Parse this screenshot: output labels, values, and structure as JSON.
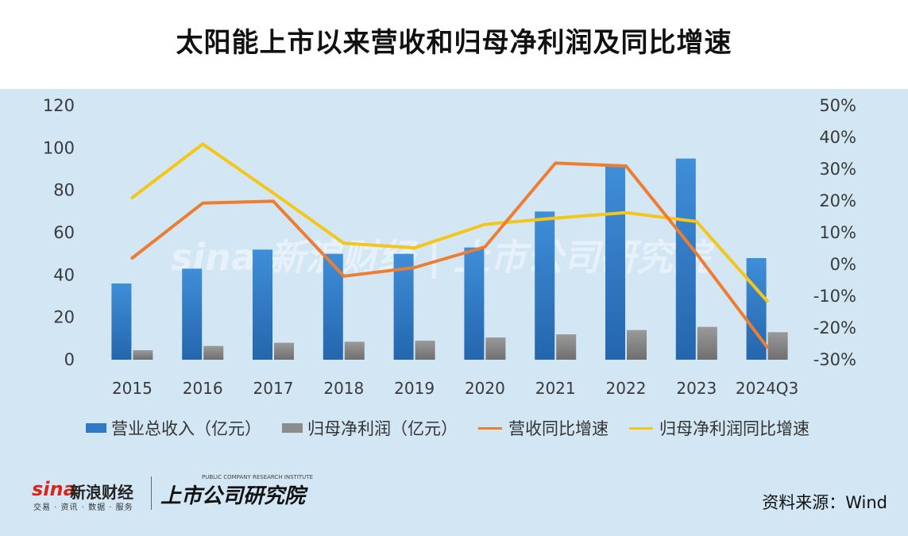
{
  "title": "太阳能上市以来营收和归母净利润及同比增速",
  "source": "资料来源：Wind",
  "logo": {
    "sina": "sina",
    "sina_cn": "新浪财经",
    "sina_sub": "交易 · 资讯 · 数据 · 服务",
    "institute": "上市公司研究院",
    "institute_en": "PUBLIC COMPANY RESEARCH INSTITUTE"
  },
  "watermark": "sina 新浪财经 | 上市公司研究院",
  "colors": {
    "revenue_bar": "#2f79c6",
    "profit_bar": "#8c8c8c",
    "revenue_growth": "#ed7d31",
    "profit_growth": "#f5c518",
    "background": "#d2e6f4"
  },
  "chart_data": {
    "type": "bar",
    "title": "太阳能上市以来营收和归母净利润及同比增速",
    "categories": [
      "2015",
      "2016",
      "2017",
      "2018",
      "2019",
      "2020",
      "2021",
      "2022",
      "2023",
      "2024Q3"
    ],
    "y_left": {
      "ylim": [
        0,
        120
      ],
      "ticks": [
        "0",
        "20",
        "40",
        "60",
        "80",
        "100",
        "120"
      ]
    },
    "y_right": {
      "ylim": [
        -30,
        50
      ],
      "ticks": [
        "-30%",
        "-20%",
        "-10%",
        "0%",
        "10%",
        "20%",
        "30%",
        "40%",
        "50%"
      ]
    },
    "series": [
      {
        "name": "营业总收入（亿元）",
        "type": "bar",
        "axis": "left",
        "values": [
          36,
          43,
          52,
          50,
          50,
          53,
          70,
          92,
          95,
          48
        ]
      },
      {
        "name": "归母净利润（亿元）",
        "type": "bar",
        "axis": "left",
        "values": [
          4.5,
          6.5,
          8,
          8.5,
          9,
          10.5,
          12,
          14,
          15.5,
          13
        ]
      },
      {
        "name": "营收同比增速",
        "type": "line",
        "axis": "right",
        "values": [
          2,
          19.3,
          19.9,
          -3.7,
          -1,
          5.5,
          31.9,
          31,
          3.4,
          -26
        ]
      },
      {
        "name": "归母净利润同比增速",
        "type": "line",
        "axis": "right",
        "values": [
          21,
          37.9,
          22.5,
          6.7,
          5.2,
          12.6,
          14.6,
          16.3,
          13.5,
          -11.5
        ]
      }
    ],
    "legend": "bottom"
  }
}
